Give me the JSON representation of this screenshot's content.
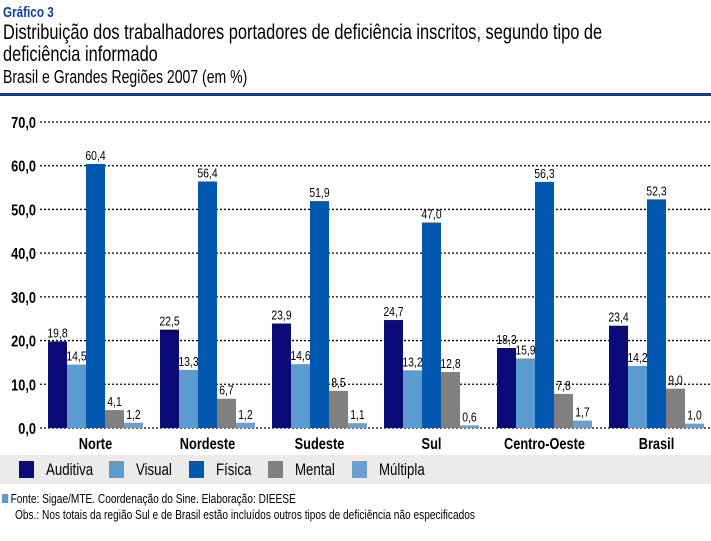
{
  "header": {
    "label": "Gráfico 3",
    "title_line1": "Distribuição dos trabalhadores portadores de deficiência inscritos, segundo tipo de",
    "title_line2": "deficiência informado",
    "subtitle": "Brasil e Grandes Regiões 2007 (em %)",
    "accent_color": "#0b3a9a"
  },
  "chart_data": {
    "type": "bar",
    "title": "Distribuição dos trabalhadores portadores de deficiência inscritos, segundo tipo de deficiência informado",
    "subtitle": "Brasil e Grandes Regiões 2007 (em %)",
    "categories": [
      "Norte",
      "Nordeste",
      "Sudeste",
      "Sul",
      "Centro-Oeste",
      "Brasil"
    ],
    "series": [
      {
        "name": "Auditiva",
        "color": "#0a0a78",
        "values": [
          19.8,
          22.5,
          23.9,
          24.7,
          18.3,
          23.4
        ],
        "labels": [
          "19,8",
          "22,5",
          "23,9",
          "24,7",
          "18,3",
          "23,4"
        ]
      },
      {
        "name": "Visual",
        "color": "#5a9bd0",
        "values": [
          14.5,
          13.3,
          14.6,
          13.2,
          15.9,
          14.2
        ],
        "labels": [
          "14,5",
          "13,3",
          "14,6",
          "13,2",
          "15,9",
          "14,2"
        ]
      },
      {
        "name": "Física",
        "color": "#0058b0",
        "values": [
          60.4,
          56.4,
          51.9,
          47.0,
          56.3,
          52.3
        ],
        "labels": [
          "60,4",
          "56,4",
          "51,9",
          "47,0",
          "56,3",
          "52,3"
        ]
      },
      {
        "name": "Mental",
        "color": "#808080",
        "values": [
          4.1,
          6.7,
          8.5,
          12.8,
          7.8,
          9.0
        ],
        "labels": [
          "4,1",
          "6,7",
          "8,5",
          "12,8",
          "7,8",
          "9,0"
        ]
      },
      {
        "name": "Múltipla",
        "color": "#6a9fcf",
        "values": [
          1.2,
          1.2,
          1.1,
          0.6,
          1.7,
          1.0
        ],
        "labels": [
          "1,2",
          "1,2",
          "1,1",
          "0,6",
          "1,7",
          "1,0"
        ]
      }
    ],
    "ylim": [
      0,
      70
    ],
    "yticks": [
      "0,0",
      "10,0",
      "20,0",
      "30,0",
      "40,0",
      "50,0",
      "60,0",
      "70,0"
    ],
    "grid": true,
    "legend": "bottom"
  },
  "footer": {
    "source": "Fonte: Sigae/MTE. Coordenação do Sine. Elaboração: DIEESE",
    "obs": "Obs.: Nos totais da região Sul e de Brasil estão incluídos outros tipos de deficiência não especificados"
  }
}
